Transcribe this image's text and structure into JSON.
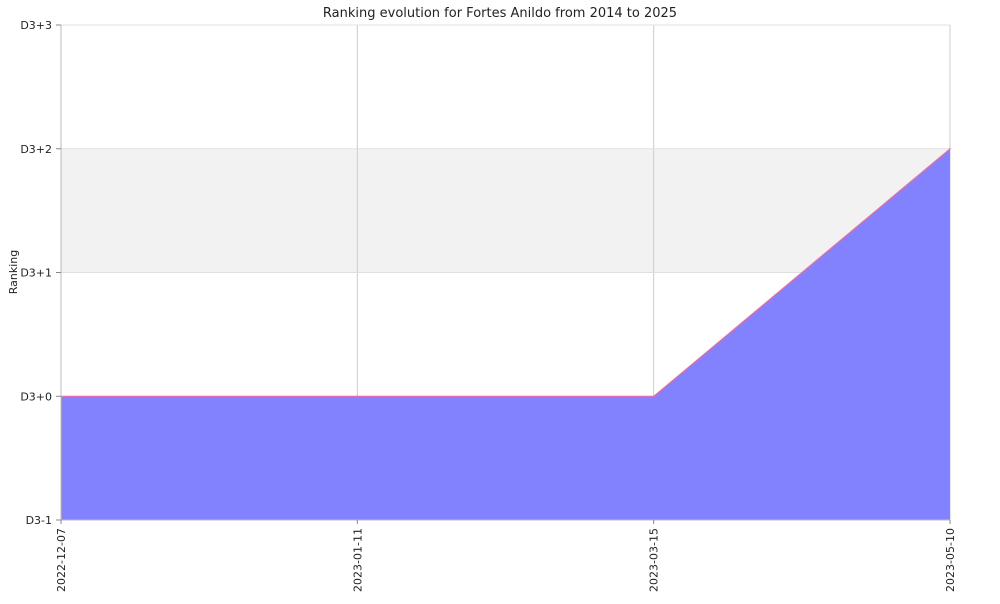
{
  "chart_data": {
    "type": "area",
    "title": "Ranking evolution for Fortes Anildo from 2014 to 2025",
    "xlabel": "",
    "ylabel": "Ranking",
    "x": [
      "2022-12-07",
      "2023-01-11",
      "2023-03-15",
      "2023-05-10"
    ],
    "x_tick_labels": [
      "2022-12-07",
      "2023-01-11",
      "2023-03-15",
      "2023-05-10"
    ],
    "y_tick_labels": [
      "D3-1",
      "D3+0",
      "D3+1",
      "D3+2",
      "D3+3"
    ],
    "y_tick_values": [
      -1,
      0,
      1,
      2,
      3
    ],
    "ylim": [
      -1,
      3
    ],
    "grid": true,
    "series": [
      {
        "values": [
          0,
          0,
          0,
          2
        ],
        "fill_color": "#8080ff",
        "line_color": "#ff66aa"
      }
    ],
    "band_colors": [
      "#f2f2f2",
      "#ffffff"
    ]
  }
}
